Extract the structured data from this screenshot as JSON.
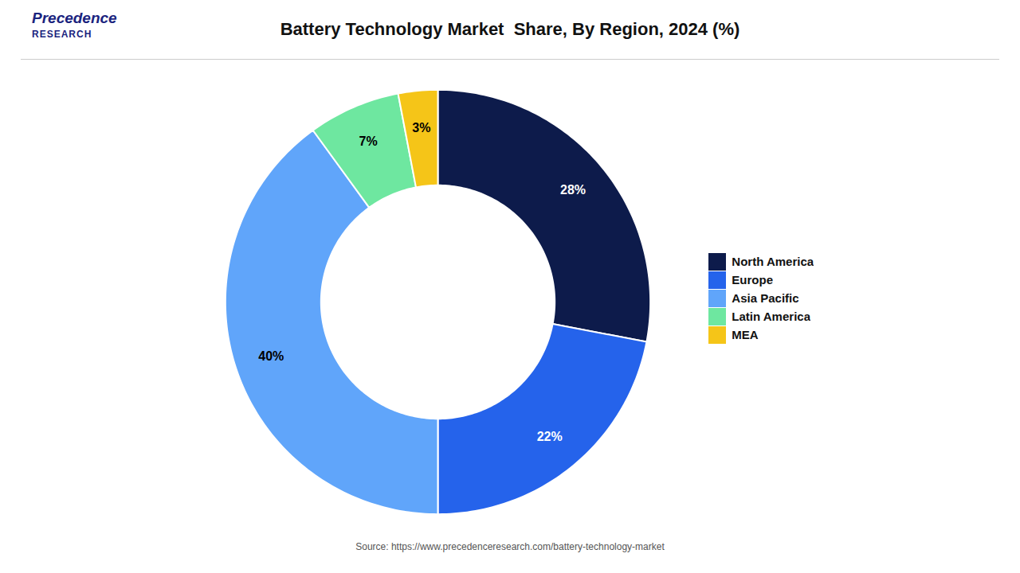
{
  "chart_data": {
    "type": "donut",
    "title": "Battery Technology Market  Share, By Region, 2024 (%)",
    "categories": [
      "North America",
      "Europe",
      "Asia Pacific",
      "Latin America",
      "MEA"
    ],
    "values": [
      28,
      22,
      40,
      7,
      3
    ],
    "value_labels": [
      "28%",
      "22%",
      "40%",
      "7%",
      "3%"
    ],
    "colors": [
      "#0d1b4b",
      "#2563eb",
      "#60a5fa",
      "#6ee7a0",
      "#f5c518"
    ],
    "data_labels": true,
    "legend": "right",
    "tick_labels": false,
    "source": "Source: https://www.precedenceresearch.com/battery-technology-market",
    "annotations": [
      "Precedence",
      "RESEARCH"
    ]
  }
}
